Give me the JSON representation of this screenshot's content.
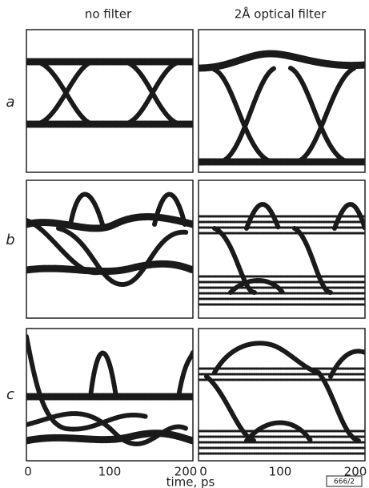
{
  "figure": {
    "column_headers": [
      "no filter",
      "2Å optical filter"
    ],
    "row_labels": [
      "a",
      "b",
      "c"
    ],
    "left_ticks": [
      "0",
      "100",
      "200"
    ],
    "right_ticks": [
      "0",
      "100",
      "200"
    ],
    "x_axis_label": "time, ps",
    "figure_id": "666/2"
  }
}
